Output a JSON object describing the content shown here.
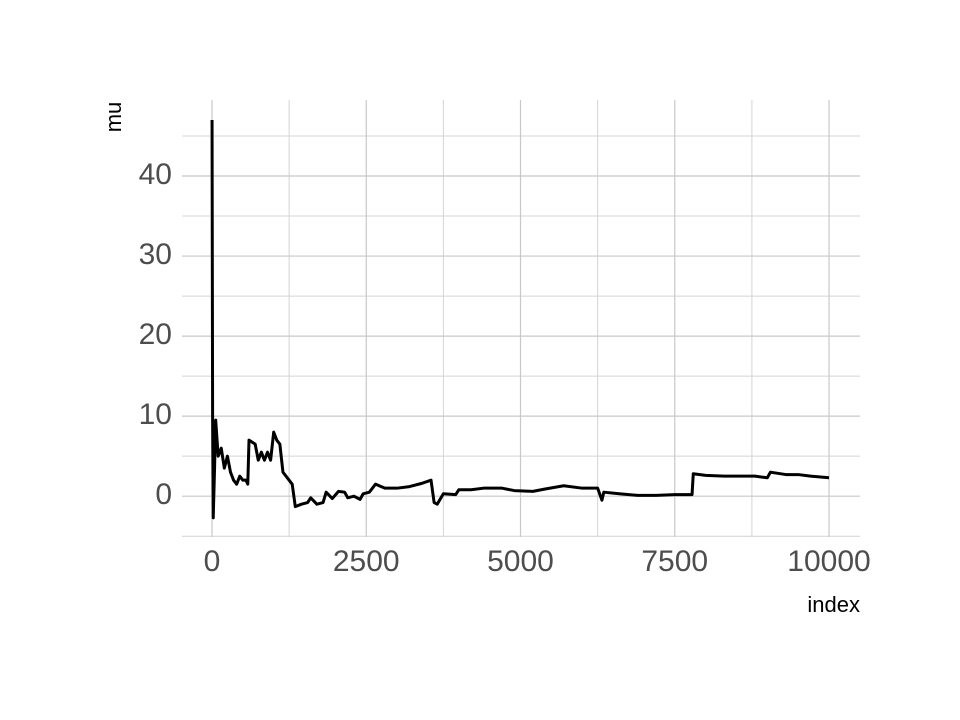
{
  "chart_data": {
    "type": "line",
    "x_label": "index",
    "y_label": "mu",
    "xlim": [
      -486,
      10502
    ],
    "ylim": [
      -5.1,
      49.5
    ],
    "xticks": [
      0,
      2500,
      5000,
      7500,
      10000
    ],
    "yticks": [
      0,
      10,
      20,
      30,
      40
    ],
    "x_minor_ticks": [
      1250,
      3750,
      6250,
      8750
    ],
    "y_minor_ticks": [
      -5,
      5,
      15,
      25,
      35,
      45
    ],
    "grid": true,
    "series": [
      {
        "color": "#000000",
        "x": [
          1,
          10,
          20,
          40,
          60,
          100,
          150,
          200,
          250,
          300,
          350,
          400,
          450,
          500,
          550,
          580,
          600,
          700,
          750,
          800,
          850,
          900,
          950,
          1000,
          1050,
          1100,
          1150,
          1200,
          1300,
          1350,
          1450,
          1550,
          1600,
          1700,
          1800,
          1850,
          1950,
          2050,
          2150,
          2200,
          2300,
          2400,
          2450,
          2550,
          2650,
          2800,
          3000,
          3200,
          3400,
          3550,
          3600,
          3650,
          3750,
          3950,
          4000,
          4200,
          4400,
          4700,
          4900,
          5200,
          5400,
          5700,
          6000,
          6250,
          6320,
          6350,
          6600,
          6900,
          7200,
          7500,
          7780,
          7800,
          8000,
          8300,
          8800,
          9000,
          9050,
          9300,
          9500,
          9700,
          10000
        ],
        "values": [
          47,
          10,
          -2.7,
          3,
          9.5,
          5,
          6,
          3.5,
          5,
          3,
          2,
          1.5,
          2.5,
          2,
          2,
          1.5,
          7,
          6.5,
          4.5,
          5.5,
          4.5,
          5.5,
          4.5,
          8,
          7,
          6.5,
          3,
          2.5,
          1.5,
          -1.3,
          -1,
          -0.8,
          -0.2,
          -1,
          -0.8,
          0.5,
          -0.3,
          0.6,
          0.5,
          -0.2,
          0,
          -0.4,
          0.3,
          0.5,
          1.5,
          1,
          1,
          1.2,
          1.6,
          2,
          -0.8,
          -1,
          0.3,
          0.2,
          0.8,
          0.8,
          1,
          1,
          0.7,
          0.6,
          0.9,
          1.3,
          1,
          1,
          -0.5,
          0.5,
          0.3,
          0.1,
          0.1,
          0.2,
          0.2,
          2.8,
          2.6,
          2.5,
          2.5,
          2.3,
          3,
          2.7,
          2.7,
          2.5,
          2.3
        ]
      }
    ]
  }
}
